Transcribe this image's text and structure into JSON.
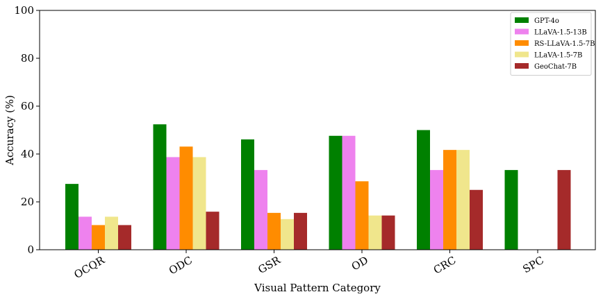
{
  "chart_data": {
    "type": "bar",
    "xlabel": "Visual Pattern Category",
    "ylabel": "Accuracy (%)",
    "ylim": [
      0,
      100
    ],
    "yticks": [
      0,
      20,
      40,
      60,
      80,
      100
    ],
    "grid": false,
    "legend_position": "top-right",
    "categories": [
      "OCQR",
      "ODC",
      "GSR",
      "OD",
      "CRC",
      "SPC"
    ],
    "series": [
      {
        "name": "GPT-4o",
        "color": "#008000",
        "values": [
          27.5,
          52.4,
          46.1,
          47.6,
          50.0,
          33.3
        ]
      },
      {
        "name": "LLaVA-1.5-13B",
        "color": "#ee82ee",
        "values": [
          13.8,
          38.7,
          33.3,
          47.6,
          33.3,
          0
        ]
      },
      {
        "name": "RS-LLaVA-1.5-7B",
        "color": "#ff8c00",
        "values": [
          10.3,
          43.1,
          15.4,
          28.6,
          41.7,
          0
        ]
      },
      {
        "name": "LLaVA-1.5-7B",
        "color": "#f0e68c",
        "values": [
          13.8,
          38.7,
          12.8,
          14.3,
          41.7,
          0
        ]
      },
      {
        "name": "GeoChat-7B",
        "color": "#a52a2a",
        "values": [
          10.3,
          15.9,
          15.4,
          14.3,
          25.0,
          33.3
        ]
      }
    ]
  }
}
